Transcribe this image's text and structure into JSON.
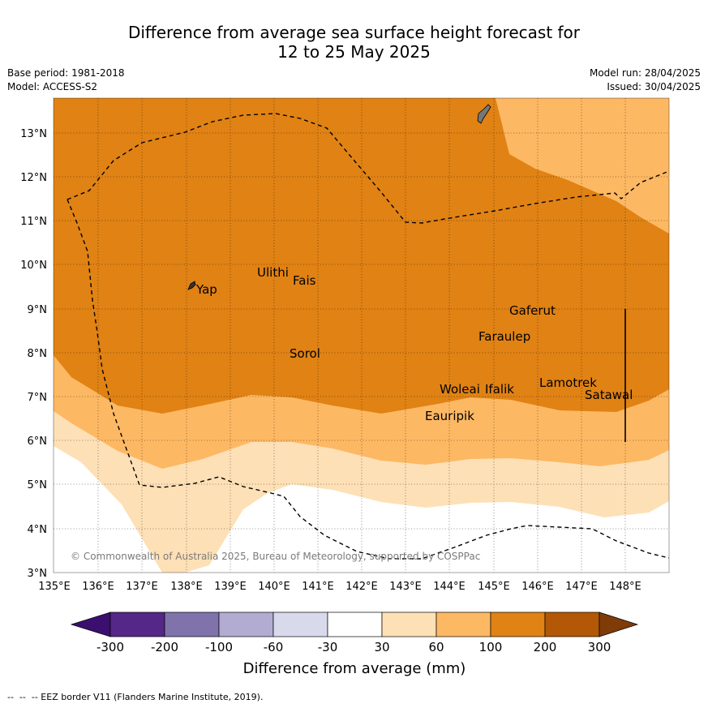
{
  "title": {
    "line1": "Difference from average sea surface height forecast for",
    "line2": "12 to 25 May 2025"
  },
  "info": {
    "base_period": "Base period: 1981-2018",
    "model": "Model: ACCESS-S2",
    "model_run": "Model run: 28/04/2025",
    "issued": "Issued: 30/04/2025"
  },
  "axes": {
    "lat_labels": [
      "13°N",
      "12°N",
      "11°N",
      "10°N",
      "9°N",
      "8°N",
      "7°N",
      "6°N",
      "5°N",
      "4°N",
      "3°N"
    ],
    "lon_labels": [
      "135°E",
      "136°E",
      "137°E",
      "138°E",
      "139°E",
      "140°E",
      "141°E",
      "142°E",
      "143°E",
      "144°E",
      "145°E",
      "146°E",
      "147°E",
      "148°E"
    ]
  },
  "places": [
    "Yap",
    "Ulithi",
    "Fais",
    "Gaferut",
    "Faraulep",
    "Sorol",
    "Woleai",
    "Ifalik",
    "Lamotrek",
    "Satawal",
    "Eauripik"
  ],
  "copyright": "© Commonwealth of Australia 2025, Bureau of Meteorology, supported by COSPPac",
  "colorbar": {
    "colors": [
      "#3b0f6f",
      "#542788",
      "#8073ac",
      "#b2abd2",
      "#d8daeb",
      "#ffffff",
      "#fee0b6",
      "#fdb863",
      "#e08214",
      "#b35806",
      "#7f3b08"
    ],
    "ticks": [
      "-300",
      "-200",
      "-100",
      "-60",
      "-30",
      "30",
      "60",
      "100",
      "200",
      "300"
    ],
    "label": "Difference from average (mm)"
  },
  "legend": {
    "eez": "-- EEZ border V11 (Flanders Marine Institute, 2019)."
  }
}
